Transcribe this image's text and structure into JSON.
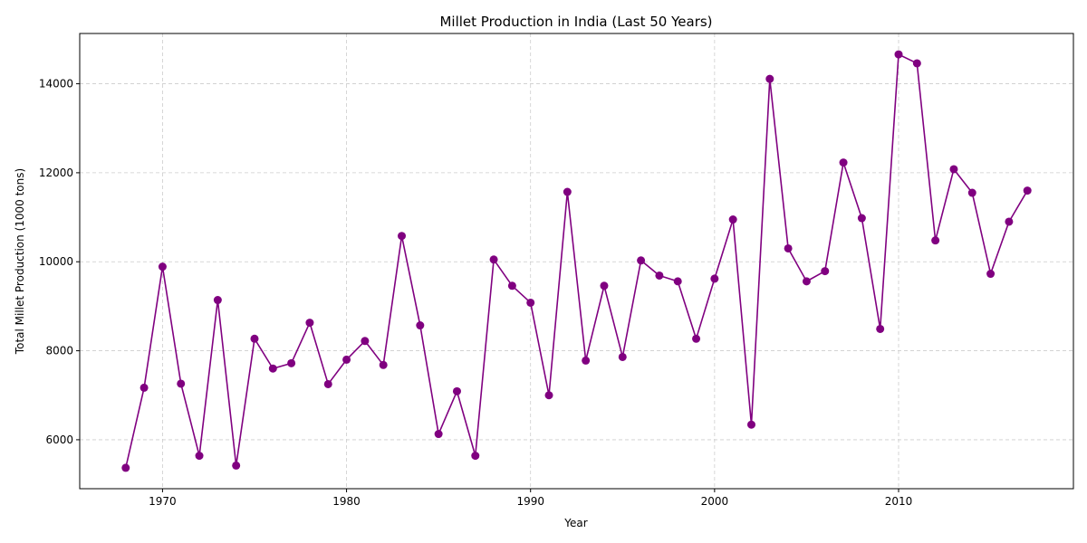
{
  "chart_data": {
    "type": "line",
    "title": "Millet Production in India (Last 50 Years)",
    "xlabel": "Year",
    "ylabel": "Total Millet Production (1000 tons)",
    "xlim": [
      1965.5,
      2019.5
    ],
    "ylim": [
      4900,
      15130
    ],
    "xticks": [
      1970,
      1980,
      1990,
      2000,
      2010
    ],
    "yticks": [
      6000,
      8000,
      10000,
      12000,
      14000
    ],
    "grid": true,
    "grid_style": "dashed",
    "legend": "none",
    "series": [
      {
        "color": "#800080",
        "marker": "circle",
        "x": [
          1968,
          1969,
          1970,
          1971,
          1972,
          1973,
          1974,
          1975,
          1976,
          1977,
          1978,
          1979,
          1980,
          1981,
          1982,
          1983,
          1984,
          1985,
          1986,
          1987,
          1988,
          1989,
          1990,
          1991,
          1992,
          1993,
          1994,
          1995,
          1996,
          1997,
          1998,
          1999,
          2000,
          2001,
          2002,
          2003,
          2004,
          2005,
          2006,
          2007,
          2008,
          2009,
          2010,
          2011,
          2012,
          2013,
          2014,
          2015,
          2016,
          2017
        ],
        "values": [
          5370,
          7170,
          9890,
          7260,
          5640,
          9140,
          5420,
          8270,
          7600,
          7720,
          8630,
          7250,
          7800,
          8220,
          7680,
          10580,
          8570,
          6130,
          7090,
          5640,
          10050,
          9460,
          9080,
          7000,
          11570,
          7780,
          9460,
          7860,
          10030,
          9690,
          9560,
          8270,
          9620,
          10950,
          6340,
          14110,
          10300,
          9560,
          9790,
          12230,
          10980,
          8490,
          14660,
          14460,
          10480,
          12080,
          11550,
          9730,
          10900,
          11600
        ]
      }
    ]
  }
}
